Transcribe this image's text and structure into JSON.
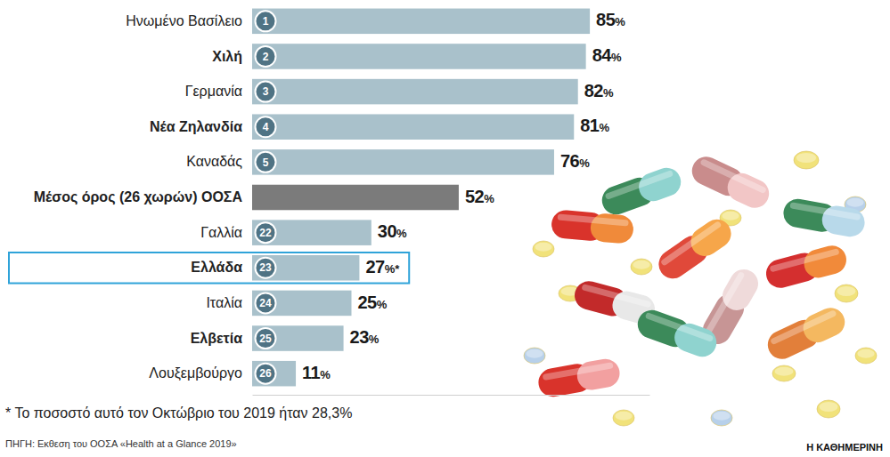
{
  "chart_data": {
    "type": "bar",
    "orientation": "horizontal",
    "categories": [
      "Ηνωμένο Βασίλειο",
      "Χιλή",
      "Γερμανία",
      "Νέα Ζηλανδία",
      "Καναδάς",
      "Μέσος όρος (26 χωρών) ΟΟΣΑ",
      "Γαλλία",
      "Ελλάδα",
      "Ιταλία",
      "Ελβετία",
      "Λουξεμβούργο"
    ],
    "ranks": [
      1,
      2,
      3,
      4,
      5,
      null,
      22,
      23,
      24,
      25,
      26
    ],
    "values": [
      85,
      84,
      82,
      81,
      76,
      52,
      30,
      27,
      25,
      23,
      11
    ],
    "value_labels": [
      "85%",
      "84%",
      "82%",
      "81%",
      "76%",
      "52%",
      "30%",
      "27%*",
      "25%",
      "23%",
      "11%"
    ],
    "colors": [
      "#a9c1cb",
      "#a9c1cb",
      "#a9c1cb",
      "#a9c1cb",
      "#a9c1cb",
      "#7b7b7b",
      "#a9c1cb",
      "#a9c1cb",
      "#a9c1cb",
      "#a9c1cb",
      "#a9c1cb"
    ],
    "xlim": [
      0,
      100
    ],
    "xticks": [],
    "tick_labels": "y",
    "data_labels": true,
    "grid": false,
    "footnote": "* Το ποσοστό αυτό τον Οκτώβριο του 2019 ήταν 28,3%",
    "source": "ΠΗΓΗ: Εκθεση του ΟΟΣΑ «Health at a Glance 2019»",
    "credit": "Η ΚΑΘΗΜΕΡΙΝΗ"
  }
}
